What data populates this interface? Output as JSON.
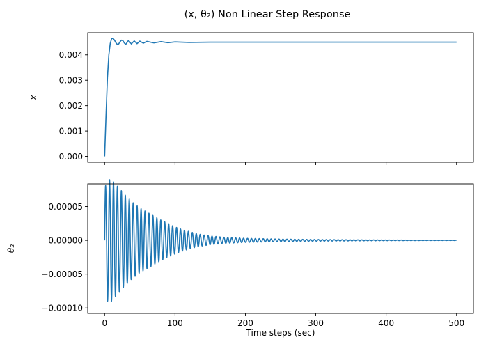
{
  "chart_data": {
    "title": "(x, θ₂) Non Linear Step Response",
    "subplots": [
      {
        "type": "line",
        "ylabel": "x",
        "xlabel": "",
        "xlim": [
          -24,
          524
        ],
        "ylim": [
          -0.000232,
          0.004872
        ],
        "xticks": [
          0,
          100,
          200,
          300,
          400,
          500
        ],
        "xtick_labels_visible": false,
        "yticks": [
          0.0,
          0.001,
          0.002,
          0.003,
          0.004
        ],
        "ytick_labels": [
          "0.000",
          "0.001",
          "0.002",
          "0.003",
          "0.004"
        ],
        "grid": false,
        "series": [
          {
            "color": "#1f77b4",
            "x": [
              0,
              2,
              4,
              6,
              8,
              10,
              12,
              14,
              16,
              18,
              20,
              22,
              24,
              26,
              28,
              30,
              34,
              38,
              42,
              46,
              50,
              55,
              60,
              70,
              80,
              90,
              100,
              120,
              150,
              200,
              250,
              300,
              350,
              400,
              450,
              500
            ],
            "y": [
              0.0,
              0.0016,
              0.0031,
              0.004,
              0.00445,
              0.00464,
              0.00465,
              0.00458,
              0.00448,
              0.00441,
              0.00443,
              0.00452,
              0.00458,
              0.00456,
              0.00447,
              0.00441,
              0.00457,
              0.00443,
              0.00455,
              0.00444,
              0.00454,
              0.00446,
              0.00453,
              0.00447,
              0.00452,
              0.00448,
              0.00451,
              0.00449,
              0.0045,
              0.0045,
              0.0045,
              0.0045,
              0.0045,
              0.0045,
              0.0045,
              0.0045
            ]
          }
        ]
      },
      {
        "type": "line",
        "ylabel": "θ₂",
        "xlabel": "Time steps (sec)",
        "xlim": [
          -24,
          524
        ],
        "ylim": [
          -0.000108,
          8.35e-05
        ],
        "xticks": [
          0,
          100,
          200,
          300,
          400,
          500
        ],
        "xtick_labels": [
          "0",
          "100",
          "200",
          "300",
          "400",
          "500"
        ],
        "yticks": [
          -0.0001,
          -5e-05,
          0.0,
          5e-05
        ],
        "ytick_labels": [
          "−0.00010",
          "−0.00005",
          "0.00000",
          "0.00005"
        ],
        "grid": false,
        "series": [
          {
            "color": "#1f77b4",
            "oscillation": {
              "x_start": 0,
              "x_end": 500,
              "period": 5.6,
              "envelope": [
                [
                  0,
                  9e-05
                ],
                [
                  10,
                  9e-05
                ],
                [
                  20,
                  7.8e-05
                ],
                [
                  30,
                  6.6e-05
                ],
                [
                  40,
                  5.6e-05
                ],
                [
                  50,
                  4.8e-05
                ],
                [
                  60,
                  4.2e-05
                ],
                [
                  70,
                  3.6e-05
                ],
                [
                  80,
                  3e-05
                ],
                [
                  90,
                  2.5e-05
                ],
                [
                  100,
                  2e-05
                ],
                [
                  110,
                  1.6e-05
                ],
                [
                  120,
                  1.3e-05
                ],
                [
                  130,
                  1e-05
                ],
                [
                  140,
                  8e-06
                ],
                [
                  150,
                  6.5e-06
                ],
                [
                  170,
                  4.5e-06
                ],
                [
                  200,
                  3e-06
                ],
                [
                  250,
                  1.8e-06
                ],
                [
                  300,
                  1.2e-06
                ],
                [
                  350,
                  8e-07
                ],
                [
                  400,
                  5e-07
                ],
                [
                  450,
                  3e-07
                ],
                [
                  500,
                  2e-07
                ]
              ]
            }
          }
        ]
      }
    ]
  }
}
